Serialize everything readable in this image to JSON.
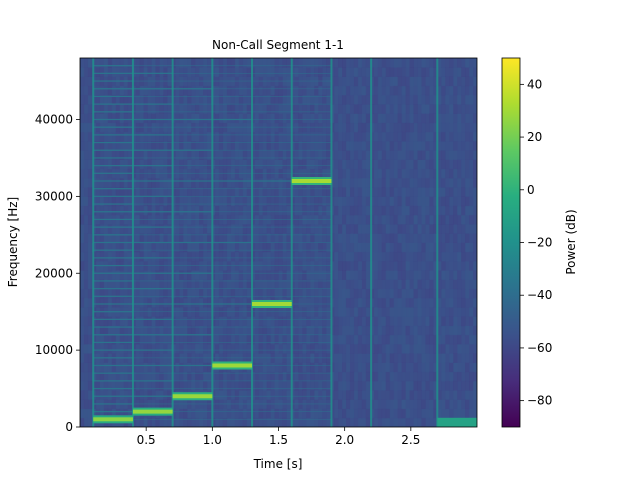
{
  "chart_data": {
    "type": "heatmap",
    "title": "Non-Call Segment 1-1",
    "xlabel": "Time [s]",
    "ylabel": "Frequency [Hz]",
    "colorbar_label": "Power (dB)",
    "xlim": [
      0.0,
      3.0
    ],
    "ylim": [
      0,
      48000
    ],
    "clim": [
      -90,
      50
    ],
    "colormap": "viridis",
    "xticks": [
      0.5,
      1.0,
      1.5,
      2.0,
      2.5
    ],
    "xtick_labels": [
      "0.5",
      "1.0",
      "1.5",
      "2.0",
      "2.5"
    ],
    "yticks": [
      0,
      10000,
      20000,
      30000,
      40000
    ],
    "ytick_labels": [
      "0",
      "10000",
      "20000",
      "30000",
      "40000"
    ],
    "cbar_ticks": [
      40,
      20,
      0,
      -20,
      -40,
      -60,
      -80
    ],
    "cbar_tick_labels": [
      "40",
      "20",
      "0",
      "−20",
      "−40",
      "−60",
      "−80"
    ],
    "background_level_db": -55,
    "tone_segments": [
      {
        "t_start": 0.1,
        "t_end": 0.4,
        "freq_hz": 1000,
        "power_db": 25
      },
      {
        "t_start": 0.4,
        "t_end": 0.7,
        "freq_hz": 2000,
        "power_db": 27
      },
      {
        "t_start": 0.7,
        "t_end": 1.0,
        "freq_hz": 4000,
        "power_db": 28
      },
      {
        "t_start": 1.0,
        "t_end": 1.3,
        "freq_hz": 8000,
        "power_db": 29
      },
      {
        "t_start": 1.3,
        "t_end": 1.6,
        "freq_hz": 16000,
        "power_db": 30
      },
      {
        "t_start": 1.6,
        "t_end": 1.9,
        "freq_hz": 32000,
        "power_db": 31
      }
    ],
    "transient_times_s": [
      0.1,
      0.4,
      0.7,
      1.0,
      1.3,
      1.6,
      1.9,
      2.2,
      2.7
    ]
  }
}
